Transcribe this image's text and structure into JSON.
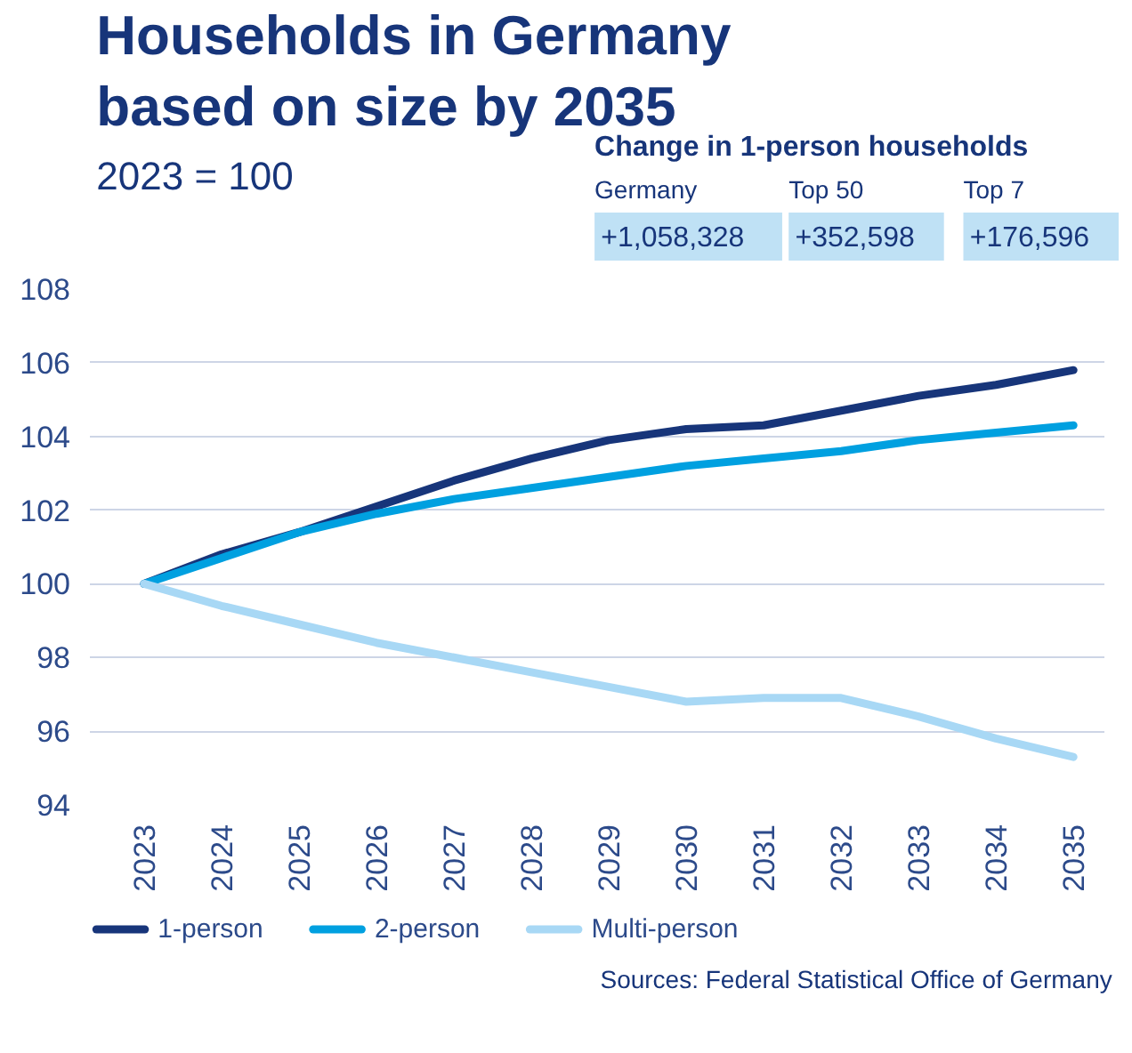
{
  "chart_data": {
    "type": "line",
    "title": "Households in Germany based on size by 2035",
    "subtitle": "2023 = 100",
    "categories": [
      "2023",
      "2024",
      "2025",
      "2026",
      "2027",
      "2028",
      "2029",
      "2030",
      "2031",
      "2032",
      "2033",
      "2034",
      "2035"
    ],
    "series": [
      {
        "name": "1-person",
        "color": "#17357a",
        "values": [
          100,
          100.8,
          101.4,
          102.1,
          102.8,
          103.4,
          103.9,
          104.2,
          104.3,
          104.7,
          105.1,
          105.4,
          105.8
        ]
      },
      {
        "name": "2-person",
        "color": "#00a0e0",
        "values": [
          100,
          100.7,
          101.4,
          101.9,
          102.3,
          102.6,
          102.9,
          103.2,
          103.4,
          103.6,
          103.9,
          104.1,
          104.3
        ]
      },
      {
        "name": "Multi-person",
        "color": "#a8d8f5",
        "values": [
          100,
          99.4,
          98.9,
          98.4,
          98,
          97.6,
          97.2,
          96.8,
          96.9,
          96.9,
          96.4,
          95.8,
          95.3
        ]
      }
    ],
    "ylim": [
      94,
      108
    ],
    "yticks": [
      94,
      96,
      98,
      100,
      102,
      104,
      106,
      108
    ],
    "grid": "y",
    "legend": "bottom",
    "marker": "none",
    "line_style": "solid",
    "annotations": [
      "Change in 1-person households",
      "Germany",
      "Top 50",
      "Top 7",
      "+1,058,328",
      "+352,598",
      "+176,596",
      "Sources: Federal Statistical Office of Germany"
    ]
  }
}
